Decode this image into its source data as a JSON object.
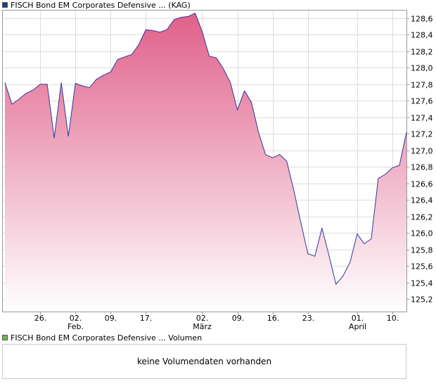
{
  "colors": {
    "price_swatch": "#1f3a93",
    "volume_swatch": "#66bb55",
    "line": "#2a3a9a",
    "fill_top": "#e0608a",
    "grid": "#dddddd"
  },
  "price_legend": {
    "label": "FISCH Bond EM Corporates Defensive ... (KAG)"
  },
  "volume_legend": {
    "label": "FISCH Bond EM Corporates Defensive ... Volumen"
  },
  "volume_panel": {
    "message": "keine Volumendaten vorhanden"
  },
  "chart_data": {
    "type": "area",
    "title": "FISCH Bond EM Corporates Defensive ... (KAG)",
    "ylim": [
      125.05,
      128.7
    ],
    "yticks": [
      125.2,
      125.4,
      125.6,
      125.8,
      126.0,
      126.2,
      126.4,
      126.6,
      126.8,
      127.0,
      127.2,
      127.4,
      127.6,
      127.8,
      128.0,
      128.2,
      128.4,
      128.6
    ],
    "ytick_labels": [
      "125,2",
      "125,4",
      "125,6",
      "125,8",
      "126,0",
      "126,2",
      "126,4",
      "126,6",
      "126,8",
      "127,0",
      "127,2",
      "127,4",
      "127,6",
      "127,8",
      "128,0",
      "128,2",
      "128,4",
      "128,6"
    ],
    "xlim": [
      0,
      57
    ],
    "xticks": [
      {
        "x": 5,
        "label": "26.",
        "sub": ""
      },
      {
        "x": 10,
        "label": "02.",
        "sub": "Feb."
      },
      {
        "x": 15,
        "label": "09.",
        "sub": ""
      },
      {
        "x": 20,
        "label": "17.",
        "sub": ""
      },
      {
        "x": 28,
        "label": "02.",
        "sub": "März"
      },
      {
        "x": 33,
        "label": "09.",
        "sub": ""
      },
      {
        "x": 38,
        "label": "16.",
        "sub": ""
      },
      {
        "x": 43,
        "label": "23.",
        "sub": ""
      },
      {
        "x": 50,
        "label": "01.",
        "sub": "April"
      },
      {
        "x": 55,
        "label": "10.",
        "sub": ""
      }
    ],
    "series": [
      {
        "name": "FISCH Bond EM Corporates Defensive ... (KAG)",
        "x": [
          0,
          1,
          2,
          3,
          4,
          5,
          6,
          7,
          8,
          9,
          10,
          11,
          12,
          13,
          14,
          15,
          16,
          17,
          18,
          19,
          20,
          21,
          22,
          23,
          24,
          25,
          26,
          27,
          28,
          29,
          30,
          31,
          32,
          33,
          34,
          35,
          36,
          37,
          38,
          39,
          40,
          41,
          42,
          43,
          44,
          45,
          46,
          47,
          48,
          49,
          50,
          51,
          52,
          53,
          54,
          55,
          56,
          57
        ],
        "values": [
          127.82,
          127.56,
          127.62,
          127.69,
          127.73,
          127.8,
          127.8,
          127.15,
          127.82,
          127.17,
          127.81,
          127.78,
          127.76,
          127.86,
          127.91,
          127.95,
          128.1,
          128.13,
          128.16,
          128.28,
          128.46,
          128.45,
          128.43,
          128.46,
          128.58,
          128.61,
          128.62,
          128.66,
          128.44,
          128.14,
          128.12,
          127.99,
          127.82,
          127.49,
          127.72,
          127.58,
          127.22,
          126.95,
          126.91,
          126.95,
          126.87,
          126.52,
          126.13,
          125.75,
          125.72,
          126.06,
          125.73,
          125.38,
          125.48,
          125.65,
          125.99,
          125.87,
          125.93,
          126.66,
          126.71,
          126.79,
          126.82,
          127.22
        ]
      }
    ]
  }
}
